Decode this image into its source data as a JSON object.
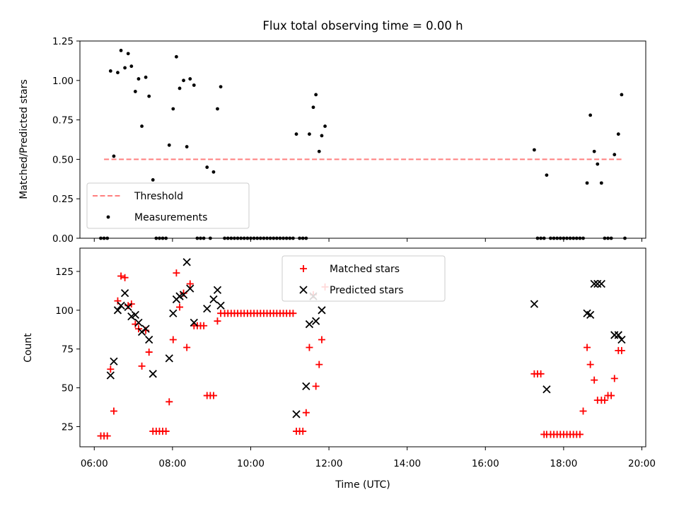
{
  "chart_data": [
    {
      "type": "scatter",
      "title": "Flux total observing time = 0.00 h",
      "xlabel": "",
      "ylabel": "Matched/Predicted stars",
      "xlim": [
        "05:38",
        "20:06"
      ],
      "ylim": [
        0,
        1.25
      ],
      "xticks": [
        "06:00",
        "08:00",
        "10:00",
        "12:00",
        "14:00",
        "16:00",
        "18:00",
        "20:00"
      ],
      "xtick_labels_visible": false,
      "yticks": [
        0.0,
        0.25,
        0.5,
        0.75,
        1.0,
        1.25
      ],
      "ytick_labels": [
        "0.00",
        "0.25",
        "0.50",
        "0.75",
        "1.00",
        "1.25"
      ],
      "legend": {
        "position": "lower-left",
        "entries": [
          "Threshold",
          "Measurements"
        ]
      },
      "threshold": {
        "name": "Threshold",
        "value": 0.5,
        "x_range": [
          "06:15",
          "19:30"
        ],
        "color": "#ff7f7f",
        "style": "dashed"
      },
      "series": [
        {
          "name": "Measurements",
          "marker": "dot",
          "color": "#000000",
          "points": [
            [
              "06:10",
              0.0
            ],
            [
              "06:15",
              0.0
            ],
            [
              "06:20",
              0.0
            ],
            [
              "06:25",
              1.06
            ],
            [
              "06:30",
              0.52
            ],
            [
              "06:36",
              1.05
            ],
            [
              "06:41",
              1.19
            ],
            [
              "06:47",
              1.08
            ],
            [
              "06:52",
              1.17
            ],
            [
              "06:57",
              1.09
            ],
            [
              "07:03",
              0.93
            ],
            [
              "07:08",
              1.01
            ],
            [
              "07:13",
              0.71
            ],
            [
              "07:19",
              1.02
            ],
            [
              "07:24",
              0.9
            ],
            [
              "07:30",
              0.37
            ],
            [
              "07:35",
              0.0
            ],
            [
              "07:40",
              0.0
            ],
            [
              "07:45",
              0.0
            ],
            [
              "07:50",
              0.0
            ],
            [
              "07:55",
              0.59
            ],
            [
              "08:01",
              0.82
            ],
            [
              "08:06",
              1.15
            ],
            [
              "08:11",
              0.95
            ],
            [
              "08:17",
              1.0
            ],
            [
              "08:22",
              0.58
            ],
            [
              "08:27",
              1.01
            ],
            [
              "08:33",
              0.97
            ],
            [
              "08:38",
              0.0
            ],
            [
              "08:43",
              0.0
            ],
            [
              "08:48",
              0.0
            ],
            [
              "08:53",
              0.45
            ],
            [
              "08:58",
              0.0
            ],
            [
              "09:03",
              0.42
            ],
            [
              "09:09",
              0.82
            ],
            [
              "09:14",
              0.96
            ],
            [
              "09:20",
              0.0
            ],
            [
              "09:25",
              0.0
            ],
            [
              "09:30",
              0.0
            ],
            [
              "09:35",
              0.0
            ],
            [
              "09:40",
              0.0
            ],
            [
              "09:45",
              0.0
            ],
            [
              "09:50",
              0.0
            ],
            [
              "09:55",
              0.0
            ],
            [
              "10:00",
              0.0
            ],
            [
              "10:05",
              0.0
            ],
            [
              "10:10",
              0.0
            ],
            [
              "10:15",
              0.0
            ],
            [
              "10:20",
              0.0
            ],
            [
              "10:25",
              0.0
            ],
            [
              "10:30",
              0.0
            ],
            [
              "10:35",
              0.0
            ],
            [
              "10:40",
              0.0
            ],
            [
              "10:45",
              0.0
            ],
            [
              "10:50",
              0.0
            ],
            [
              "10:55",
              0.0
            ],
            [
              "11:00",
              0.0
            ],
            [
              "11:05",
              0.0
            ],
            [
              "11:10",
              0.66
            ],
            [
              "11:15",
              0.0
            ],
            [
              "11:20",
              0.0
            ],
            [
              "11:25",
              0.0
            ],
            [
              "11:30",
              0.66
            ],
            [
              "11:36",
              0.83
            ],
            [
              "11:40",
              0.91
            ],
            [
              "11:45",
              0.55
            ],
            [
              "11:49",
              0.65
            ],
            [
              "11:54",
              0.71
            ],
            [
              "17:15",
              0.56
            ],
            [
              "17:20",
              0.0
            ],
            [
              "17:25",
              0.0
            ],
            [
              "17:30",
              0.0
            ],
            [
              "17:34",
              0.4
            ],
            [
              "17:40",
              0.0
            ],
            [
              "17:45",
              0.0
            ],
            [
              "17:50",
              0.0
            ],
            [
              "17:55",
              0.0
            ],
            [
              "18:00",
              0.0
            ],
            [
              "18:05",
              0.0
            ],
            [
              "18:10",
              0.0
            ],
            [
              "18:15",
              0.0
            ],
            [
              "18:20",
              0.0
            ],
            [
              "18:25",
              0.0
            ],
            [
              "18:30",
              0.0
            ],
            [
              "18:36",
              0.35
            ],
            [
              "18:41",
              0.78
            ],
            [
              "18:47",
              0.55
            ],
            [
              "18:52",
              0.47
            ],
            [
              "18:58",
              0.35
            ],
            [
              "19:03",
              0.0
            ],
            [
              "19:08",
              0.0
            ],
            [
              "19:13",
              0.0
            ],
            [
              "19:18",
              0.53
            ],
            [
              "19:24",
              0.66
            ],
            [
              "19:29",
              0.91
            ],
            [
              "19:34",
              0.0
            ]
          ]
        }
      ]
    },
    {
      "type": "scatter",
      "title": "",
      "xlabel": "Time (UTC)",
      "ylabel": "Count",
      "xlim": [
        "05:38",
        "20:06"
      ],
      "ylim": [
        12,
        140
      ],
      "xticks": [
        "06:00",
        "08:00",
        "10:00",
        "12:00",
        "14:00",
        "16:00",
        "18:00",
        "20:00"
      ],
      "yticks": [
        25,
        50,
        75,
        100,
        125
      ],
      "legend": {
        "position": "upper-center",
        "entries": [
          "Matched stars",
          "Predicted stars"
        ]
      },
      "series": [
        {
          "name": "Matched stars",
          "marker": "plus",
          "color": "#ff0000",
          "points": [
            [
              "06:10",
              19
            ],
            [
              "06:15",
              19
            ],
            [
              "06:20",
              19
            ],
            [
              "06:25",
              62
            ],
            [
              "06:30",
              35
            ],
            [
              "06:36",
              106
            ],
            [
              "06:41",
              122
            ],
            [
              "06:47",
              121
            ],
            [
              "06:52",
              103
            ],
            [
              "06:57",
              104
            ],
            [
              "07:03",
              91
            ],
            [
              "07:08",
              88
            ],
            [
              "07:13",
              64
            ],
            [
              "07:19",
              87
            ],
            [
              "07:24",
              73
            ],
            [
              "07:30",
              22
            ],
            [
              "07:35",
              22
            ],
            [
              "07:40",
              22
            ],
            [
              "07:45",
              22
            ],
            [
              "07:50",
              22
            ],
            [
              "07:55",
              41
            ],
            [
              "08:01",
              81
            ],
            [
              "08:06",
              124
            ],
            [
              "08:11",
              102
            ],
            [
              "08:17",
              111
            ],
            [
              "08:22",
              76
            ],
            [
              "08:27",
              117
            ],
            [
              "08:33",
              90
            ],
            [
              "08:38",
              90
            ],
            [
              "08:43",
              90
            ],
            [
              "08:48",
              90
            ],
            [
              "08:53",
              45
            ],
            [
              "08:58",
              45
            ],
            [
              "09:03",
              45
            ],
            [
              "09:09",
              93
            ],
            [
              "09:14",
              98
            ],
            [
              "09:20",
              98
            ],
            [
              "09:25",
              98
            ],
            [
              "09:30",
              98
            ],
            [
              "09:35",
              98
            ],
            [
              "09:40",
              98
            ],
            [
              "09:45",
              98
            ],
            [
              "09:50",
              98
            ],
            [
              "09:55",
              98
            ],
            [
              "10:00",
              98
            ],
            [
              "10:05",
              98
            ],
            [
              "10:10",
              98
            ],
            [
              "10:15",
              98
            ],
            [
              "10:20",
              98
            ],
            [
              "10:25",
              98
            ],
            [
              "10:30",
              98
            ],
            [
              "10:35",
              98
            ],
            [
              "10:40",
              98
            ],
            [
              "10:45",
              98
            ],
            [
              "10:50",
              98
            ],
            [
              "10:55",
              98
            ],
            [
              "11:00",
              98
            ],
            [
              "11:05",
              98
            ],
            [
              "11:10",
              22
            ],
            [
              "11:15",
              22
            ],
            [
              "11:20",
              22
            ],
            [
              "11:25",
              34
            ],
            [
              "11:30",
              76
            ],
            [
              "11:36",
              110
            ],
            [
              "11:40",
              51
            ],
            [
              "11:45",
              65
            ],
            [
              "11:49",
              81
            ],
            [
              "11:54",
              115
            ],
            [
              "17:15",
              59
            ],
            [
              "17:20",
              59
            ],
            [
              "17:25",
              59
            ],
            [
              "17:30",
              20
            ],
            [
              "17:34",
              20
            ],
            [
              "17:40",
              20
            ],
            [
              "17:45",
              20
            ],
            [
              "17:50",
              20
            ],
            [
              "17:55",
              20
            ],
            [
              "18:00",
              20
            ],
            [
              "18:05",
              20
            ],
            [
              "18:10",
              20
            ],
            [
              "18:15",
              20
            ],
            [
              "18:20",
              20
            ],
            [
              "18:25",
              20
            ],
            [
              "18:30",
              35
            ],
            [
              "18:36",
              76
            ],
            [
              "18:41",
              65
            ],
            [
              "18:47",
              55
            ],
            [
              "18:52",
              42
            ],
            [
              "18:58",
              42
            ],
            [
              "19:03",
              42
            ],
            [
              "19:08",
              45
            ],
            [
              "19:13",
              45
            ],
            [
              "19:18",
              56
            ],
            [
              "19:24",
              74
            ],
            [
              "19:29",
              74
            ]
          ]
        },
        {
          "name": "Predicted stars",
          "marker": "x",
          "color": "#000000",
          "points": [
            [
              "06:25",
              58
            ],
            [
              "06:30",
              67
            ],
            [
              "06:36",
              100
            ],
            [
              "06:41",
              103
            ],
            [
              "06:47",
              111
            ],
            [
              "06:52",
              102
            ],
            [
              "06:57",
              96
            ],
            [
              "07:03",
              97
            ],
            [
              "07:08",
              92
            ],
            [
              "07:13",
              86
            ],
            [
              "07:19",
              88
            ],
            [
              "07:24",
              81
            ],
            [
              "07:30",
              59
            ],
            [
              "07:55",
              69
            ],
            [
              "08:01",
              98
            ],
            [
              "08:06",
              107
            ],
            [
              "08:11",
              109
            ],
            [
              "08:17",
              110
            ],
            [
              "08:22",
              131
            ],
            [
              "08:27",
              114
            ],
            [
              "08:33",
              92
            ],
            [
              "08:53",
              101
            ],
            [
              "09:03",
              107
            ],
            [
              "09:09",
              113
            ],
            [
              "09:14",
              103
            ],
            [
              "11:10",
              33
            ],
            [
              "11:25",
              51
            ],
            [
              "11:30",
              91
            ],
            [
              "11:36",
              109
            ],
            [
              "11:40",
              93
            ],
            [
              "11:49",
              100
            ],
            [
              "17:15",
              104
            ],
            [
              "17:34",
              49
            ],
            [
              "18:36",
              98
            ],
            [
              "18:41",
              97
            ],
            [
              "18:47",
              117
            ],
            [
              "18:52",
              117
            ],
            [
              "18:58",
              117
            ],
            [
              "19:18",
              84
            ],
            [
              "19:24",
              84
            ],
            [
              "19:29",
              81
            ]
          ]
        }
      ]
    }
  ]
}
